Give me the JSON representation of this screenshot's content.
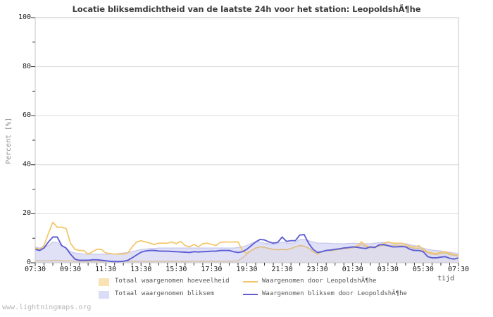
{
  "title": "Locatie bliksemdichtheid van de laatste 24h voor het station: LeopoldshÃ¶he",
  "watermark": "www.lightningmaps.org",
  "y_axis": {
    "label": "Percent  [%]",
    "ticks": [
      {
        "label": "100",
        "value": 100
      },
      {
        "label": "80",
        "value": 80
      },
      {
        "label": "60",
        "value": 60
      },
      {
        "label": "40",
        "value": 40
      },
      {
        "label": "20",
        "value": 20
      },
      {
        "label": "0",
        "value": 0
      }
    ]
  },
  "x_axis": {
    "label": "tijd",
    "ticks": [
      "07:30",
      "09:30",
      "11:30",
      "13:30",
      "15:30",
      "17:30",
      "19:30",
      "21:30",
      "23:30",
      "01:30",
      "03:30",
      "05:30",
      "07:30"
    ]
  },
  "legend": {
    "items": [
      {
        "label": "Totaal waargenomen hoeveelheid",
        "swatch": "fill",
        "color": "#f9e2b3"
      },
      {
        "label": "Waargenomen door LeopoldshÃ¶he",
        "swatch": "line",
        "color": "#f3c566"
      },
      {
        "label": "Totaal waargenomen bliksem",
        "swatch": "fill",
        "color": "#dbdcf5"
      },
      {
        "label": "Waargenomen bliksem door LeopoldshÃ¶he",
        "swatch": "line",
        "color": "#5d5dd5"
      }
    ]
  },
  "colors": {
    "grid": "#dcdcdc",
    "border": "#c6c6c6",
    "tick": "#333333",
    "tan_fill": "#f9e2b3",
    "tan_edge": "#d8bc92",
    "lavender_fill": "#dbdcf5",
    "lavender_edge": "#c2c3ee",
    "yellow_line": "#f3c566",
    "blue_line": "#5d5dd5"
  },
  "chart_data": {
    "type": "area",
    "title": "Locatie bliksemdichtheid van de laatste 24h voor het station: LeopoldshÃ¶he",
    "xlabel": "tijd",
    "ylabel": "Percent [%]",
    "ylim": [
      0,
      100
    ],
    "grid": "horizontal major every 20, minor ticks every 10",
    "legend_position": "bottom",
    "x_tick_labels": [
      "07:30",
      "09:30",
      "11:30",
      "13:30",
      "15:30",
      "17:30",
      "19:30",
      "21:30",
      "23:30",
      "01:30",
      "03:30",
      "05:30",
      "07:30"
    ],
    "y_gridlines": [
      20,
      40,
      60,
      80
    ],
    "x": [
      "07:30",
      "07:45",
      "08:00",
      "08:15",
      "08:30",
      "08:45",
      "09:00",
      "09:15",
      "09:30",
      "09:45",
      "10:00",
      "10:15",
      "10:30",
      "10:45",
      "11:00",
      "11:15",
      "11:30",
      "11:45",
      "12:00",
      "12:15",
      "12:30",
      "12:45",
      "13:00",
      "13:15",
      "13:30",
      "13:45",
      "14:00",
      "14:15",
      "14:30",
      "14:45",
      "15:00",
      "15:15",
      "15:30",
      "15:45",
      "16:00",
      "16:15",
      "16:30",
      "16:45",
      "17:00",
      "17:15",
      "17:30",
      "17:45",
      "18:00",
      "18:15",
      "18:30",
      "18:45",
      "19:00",
      "19:15",
      "19:30",
      "19:45",
      "20:00",
      "20:15",
      "20:30",
      "20:45",
      "21:00",
      "21:15",
      "21:30",
      "21:45",
      "22:00",
      "22:15",
      "22:30",
      "22:45",
      "23:00",
      "23:15",
      "23:30",
      "23:45",
      "00:00",
      "00:15",
      "00:30",
      "00:45",
      "01:00",
      "01:15",
      "01:30",
      "01:45",
      "02:00",
      "02:15",
      "02:30",
      "02:45",
      "03:00",
      "03:15",
      "03:30",
      "03:45",
      "04:00",
      "04:15",
      "04:30",
      "04:45",
      "05:00",
      "05:15",
      "05:30",
      "05:45",
      "06:00",
      "06:15",
      "06:30",
      "06:45",
      "07:00",
      "07:15",
      "07:30"
    ],
    "series": [
      {
        "name": "Totaal waargenomen hoeveelheid",
        "type": "area",
        "fill": "#f9e2b3",
        "edge": "#d8bc92",
        "opacity": 1,
        "values": [
          0.8,
          0.8,
          0.8,
          0.8,
          1,
          1,
          0.8,
          0.8,
          0.8,
          0.6,
          0.6,
          0.6,
          0.6,
          0.6,
          0.6,
          0.6,
          0.6,
          0.6,
          0.6,
          0.6,
          0.6,
          0.6,
          0.6,
          0.6,
          0.6,
          0.6,
          0.6,
          0.6,
          0.6,
          0.6,
          0.6,
          0.6,
          0.6,
          0.6,
          0.6,
          0.6,
          0.6,
          0.6,
          0.6,
          0.6,
          0.6,
          0.6,
          0.6,
          0.6,
          0.6,
          0.7,
          0.8,
          2,
          3.5,
          5,
          6,
          6.5,
          6.3,
          5.8,
          5.5,
          5.3,
          5.5,
          5.3,
          5.8,
          6.5,
          7,
          6.8,
          6,
          4.5,
          3.5,
          4.5,
          5,
          5,
          5.2,
          5.5,
          5.8,
          6,
          6,
          6.5,
          7.5,
          6.5,
          6,
          6.2,
          6.8,
          7,
          7,
          7,
          7.2,
          7,
          6.8,
          6.2,
          5.8,
          6,
          5,
          4,
          3.5,
          3.3,
          3.8,
          4,
          3.3,
          3,
          2.8
        ]
      },
      {
        "name": "Totaal waargenomen bliksem",
        "type": "area",
        "fill": "#dbdcf5",
        "edge": "#c2c3ee",
        "opacity": 0.85,
        "values": [
          6.5,
          6,
          6.5,
          7,
          8.5,
          8.2,
          7,
          6,
          4.5,
          4,
          3.8,
          3.6,
          3.5,
          3.5,
          3.5,
          3.5,
          3.5,
          3.5,
          3.6,
          3.8,
          4,
          4.2,
          4.5,
          5,
          5.5,
          5.6,
          5.8,
          5.8,
          6,
          6,
          6,
          6,
          6,
          6,
          6,
          6,
          6,
          6,
          6,
          6,
          6,
          6,
          6,
          6,
          6,
          6,
          6.2,
          6.5,
          7,
          8,
          8.5,
          8.5,
          8,
          7.8,
          7.5,
          7.8,
          8.5,
          8,
          8,
          8.2,
          9.5,
          9.5,
          9,
          8.5,
          8,
          8,
          8,
          7.9,
          7.8,
          7.8,
          7.8,
          7.9,
          8,
          7.9,
          7.8,
          7.8,
          7.8,
          8,
          8.2,
          8.3,
          8.3,
          8.1,
          8,
          7.9,
          7.8,
          7.4,
          7,
          6.5,
          6,
          5.5,
          5.2,
          5,
          4.8,
          4.5,
          4.3,
          4,
          3.8
        ]
      },
      {
        "name": "Waargenomen door LeopoldshÃ¶he",
        "type": "line",
        "color": "#f3c566",
        "values": [
          6,
          5.5,
          7,
          12,
          16.5,
          14.5,
          14.5,
          14,
          8,
          5.5,
          5,
          5,
          3.5,
          4.5,
          5.5,
          5.5,
          4,
          3.8,
          3.5,
          3.6,
          3.5,
          4,
          6.5,
          8.5,
          9,
          8.5,
          8,
          7.5,
          8,
          8,
          8,
          8.5,
          7.8,
          8.7,
          7,
          6.5,
          7.5,
          6.5,
          7.8,
          8,
          7.5,
          7,
          8.3,
          8.5,
          8.4,
          8.5,
          8.5,
          5,
          3.8,
          5,
          6,
          6.5,
          6.3,
          5.8,
          5.5,
          5.3,
          5.5,
          5.3,
          5.8,
          6.5,
          7,
          6.8,
          6,
          4.5,
          3.5,
          4.5,
          5,
          5,
          5.2,
          5.5,
          5.8,
          6,
          6.2,
          7,
          8.5,
          7,
          6.2,
          6.5,
          7.2,
          7.8,
          8.5,
          8,
          8,
          8,
          7.5,
          6.8,
          6.3,
          7,
          5.5,
          4.5,
          4,
          3.8,
          4.3,
          4.5,
          3.8,
          3.3,
          3
        ]
      },
      {
        "name": "Waargenomen bliksem door LeopoldshÃ¶he",
        "type": "line",
        "color": "#5d5dd5",
        "values": [
          5.5,
          5,
          6,
          8.5,
          10.5,
          10.5,
          7,
          6,
          3.5,
          1.5,
          1,
          1,
          1,
          1.2,
          1.2,
          1,
          0.8,
          0.6,
          0.5,
          0.5,
          0.6,
          1,
          2,
          3.2,
          4.3,
          4.8,
          5,
          5,
          4.8,
          4.7,
          4.7,
          4.6,
          4.5,
          4.4,
          4.3,
          4.2,
          4.5,
          4.4,
          4.5,
          4.6,
          4.7,
          4.7,
          5,
          5,
          5,
          4.5,
          4.2,
          4.5,
          5.5,
          7,
          8.5,
          9.5,
          9.3,
          8.5,
          8,
          8.3,
          10.5,
          8.7,
          9,
          9,
          11.3,
          11.5,
          8,
          5.5,
          4.2,
          4.5,
          5,
          5.2,
          5.5,
          5.7,
          6,
          6.2,
          6.5,
          6.3,
          6,
          5.8,
          6.5,
          6.2,
          7.3,
          7.4,
          7,
          6.5,
          6.5,
          6.6,
          6.5,
          5.5,
          5,
          5,
          4.5,
          2.5,
          2,
          2,
          2.3,
          2.5,
          1.8,
          1.5,
          2
        ]
      }
    ]
  }
}
